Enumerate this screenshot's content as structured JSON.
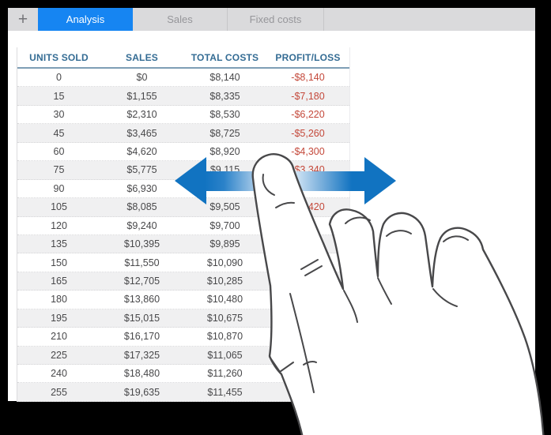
{
  "tabbar": {
    "add_label": "+",
    "tabs": [
      {
        "label": "Analysis",
        "active": true
      },
      {
        "label": "Sales",
        "active": false
      },
      {
        "label": "Fixed costs",
        "active": false
      }
    ]
  },
  "table": {
    "columns": [
      "UNITS SOLD",
      "SALES",
      "TOTAL COSTS",
      "PROFIT/LOSS"
    ],
    "rows": [
      [
        "0",
        "$0",
        "$8,140",
        "-$8,140"
      ],
      [
        "15",
        "$1,155",
        "$8,335",
        "-$7,180"
      ],
      [
        "30",
        "$2,310",
        "$8,530",
        "-$6,220"
      ],
      [
        "45",
        "$3,465",
        "$8,725",
        "-$5,260"
      ],
      [
        "60",
        "$4,620",
        "$8,920",
        "-$4,300"
      ],
      [
        "75",
        "$5,775",
        "$9,115",
        "-$3,340"
      ],
      [
        "90",
        "$6,930",
        "",
        ""
      ],
      [
        "105",
        "$8,085",
        "$9,505",
        "-$1,420"
      ],
      [
        "120",
        "$9,240",
        "$9,700",
        ""
      ],
      [
        "135",
        "$10,395",
        "$9,895",
        ""
      ],
      [
        "150",
        "$11,550",
        "$10,090",
        ""
      ],
      [
        "165",
        "$12,705",
        "$10,285",
        ""
      ],
      [
        "180",
        "$13,860",
        "$10,480",
        ""
      ],
      [
        "195",
        "$15,015",
        "$10,675",
        ""
      ],
      [
        "210",
        "$16,170",
        "$10,870",
        ""
      ],
      [
        "225",
        "$17,325",
        "$11,065",
        ""
      ],
      [
        "240",
        "$18,480",
        "$11,260",
        ""
      ],
      [
        "255",
        "$19,635",
        "$11,455",
        ""
      ]
    ]
  },
  "gesture": {
    "type": "horizontal-swipe",
    "description": "index finger touching sheet with double-headed horizontal arrow"
  },
  "colors": {
    "active_tab_blue": "#1685F2",
    "arrow_blue": "#1173C1",
    "header_text_blue": "#346C94",
    "negative_red": "#C4483A",
    "tabbar_gray": "#dadadc",
    "stripe_gray": "#f0f0f1",
    "frame_black": "#000000"
  }
}
